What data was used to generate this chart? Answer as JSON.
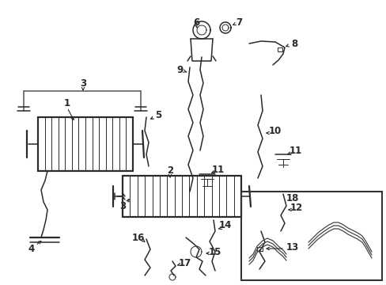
{
  "bg_color": "#ffffff",
  "line_color": "#2a2a2a",
  "fig_w": 4.89,
  "fig_h": 3.6,
  "dpi": 100,
  "lw": 1.1,
  "lw_thick": 1.6,
  "lw_thin": 0.7,
  "font_size": 8.5,
  "font_size_sm": 7.5
}
